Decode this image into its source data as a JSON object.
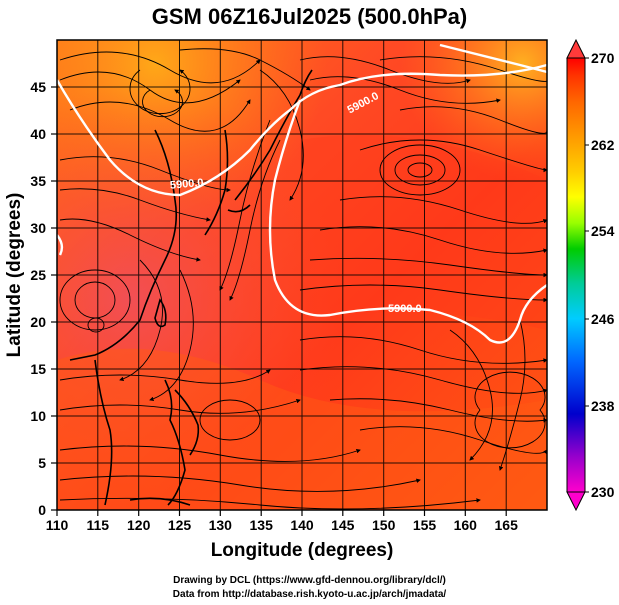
{
  "title": "GSM 06Z16Jul2025 (500.0hPa)",
  "x_axis": {
    "label": "Longitude (degrees)",
    "range": [
      110,
      170
    ],
    "ticks": [
      "110",
      "115",
      "120",
      "125",
      "130",
      "135",
      "140",
      "145",
      "150",
      "155",
      "160",
      "165"
    ]
  },
  "y_axis": {
    "label": "Latitude  (degrees)",
    "range": [
      0,
      50
    ],
    "ticks": [
      "0",
      "5",
      "10",
      "15",
      "20",
      "25",
      "30",
      "35",
      "40",
      "45"
    ]
  },
  "colorbar": {
    "range": [
      230,
      270
    ],
    "labels": [
      "270",
      "262",
      "254",
      "246",
      "238",
      "230"
    ],
    "colors": [
      "#ff00cc",
      "#9900cc",
      "#0000cc",
      "#0066ff",
      "#00ccff",
      "#00cc99",
      "#00cc00",
      "#99ff00",
      "#ffff00",
      "#ffcc00",
      "#ff9900",
      "#ff6600",
      "#ff3300",
      "#ff0000"
    ]
  },
  "contour_labels": [
    "5900.0",
    "5900.0",
    "5900.0"
  ],
  "footer": {
    "line1": "Drawing by DCL (https://www.gfd-dennou.org/library/dcl/)",
    "line2": "Data from http://database.rish.kyoto-u.ac.jp/arch/jmadata/"
  }
}
